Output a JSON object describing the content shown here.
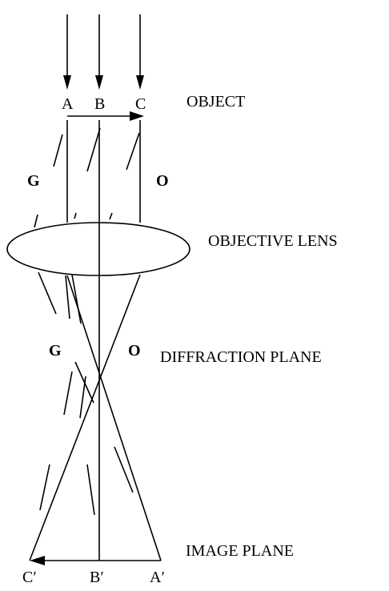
{
  "points": {
    "a": "A",
    "b": "B",
    "c": "C",
    "a_prime": "A′",
    "b_prime": "B′",
    "c_prime": "C′"
  },
  "planes": {
    "object": "OBJECT",
    "objective_lens": "OBJECTIVE LENS",
    "diffraction_plane": "DIFFRACTION PLANE",
    "image_plane": "IMAGE PLANE"
  },
  "beams": {
    "g_upper": "G",
    "o_upper": "O",
    "g_lower": "G",
    "o_lower": "O"
  }
}
